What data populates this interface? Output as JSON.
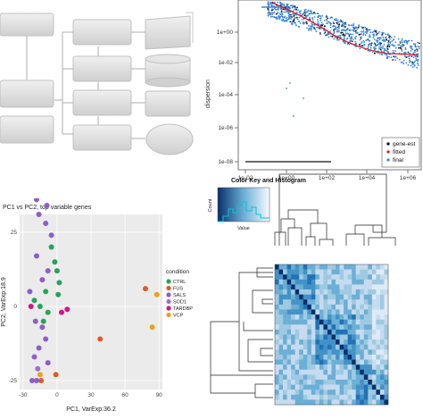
{
  "dispersion": {
    "y_label": "dispersion",
    "y_ticks": [
      "1e+00",
      "1e-02",
      "1e-04",
      "1e-06",
      "1e-08"
    ],
    "x_ticks": [
      "1e-02",
      "1e+00",
      "1e+02",
      "1e+04",
      "1e+06"
    ],
    "legend": [
      {
        "label": "gene-est",
        "color": "#000000"
      },
      {
        "label": "fitted",
        "color": "#e41a1c"
      },
      {
        "label": "final",
        "color": "#3a86d8"
      }
    ]
  },
  "pca": {
    "title": "PC1 vs PC2, top variable genes",
    "xlabel": "PC1, VarExp:36.2",
    "ylabel": "PC2, VarExp:18.9",
    "legend_title": "condition",
    "colors": {
      "CTRL": "#27a35a",
      "FUS": "#e05a22",
      "SALS": "#8d5ec9",
      "SOD1": "#9c6fd0",
      "TARDBP": "#d6128a",
      "VCP": "#f0a01b"
    }
  },
  "chart_data": [
    {
      "type": "scatter",
      "title": "PC1 vs PC2, top variable genes",
      "xlabel": "PC1, VarExp:36.2",
      "ylabel": "PC2, VarExp:18.9",
      "xlim": [
        -33,
        93
      ],
      "ylim": [
        -28,
        31
      ],
      "xticks": [
        "-30",
        "0",
        "30",
        "60",
        "90"
      ],
      "yticks": [
        "25",
        "0",
        "-25"
      ],
      "legend_position": "right",
      "series": [
        {
          "name": "CTRL",
          "points": [
            [
              -5,
              20
            ],
            [
              -2,
              15
            ],
            [
              0,
              12
            ],
            [
              2,
              8
            ],
            [
              -20,
              2
            ],
            [
              -15,
              0
            ],
            [
              -10,
              5
            ],
            [
              1,
              4
            ],
            [
              -8,
              -2
            ],
            [
              -12,
              -5
            ]
          ]
        },
        {
          "name": "FUS",
          "points": [
            [
              78,
              6
            ],
            [
              38,
              -11
            ],
            [
              -1,
              -23
            ],
            [
              -14,
              -25
            ]
          ]
        },
        {
          "name": "SALS",
          "points": [
            [
              -20,
              41
            ],
            [
              -18,
              36
            ],
            [
              -9,
              34
            ],
            [
              -16,
              31
            ],
            [
              -10,
              28
            ],
            [
              -5,
              24
            ],
            [
              -18,
              17
            ],
            [
              -13,
              9
            ],
            [
              -8,
              12
            ],
            [
              -24,
              5
            ],
            [
              -19,
              -5
            ],
            [
              -13,
              -7
            ],
            [
              -10,
              -11
            ],
            [
              -16,
              -14
            ],
            [
              -20,
              -17
            ],
            [
              -8,
              -19
            ],
            [
              -22,
              -25
            ],
            [
              -18,
              -25
            ]
          ]
        },
        {
          "name": "SOD1",
          "points": [
            [
              -17,
              -21
            ]
          ]
        },
        {
          "name": "TARDBP",
          "points": [
            [
              -23,
              0
            ],
            [
              4,
              -2
            ],
            [
              9,
              -1
            ]
          ]
        },
        {
          "name": "VCP",
          "points": [
            [
              88,
              4
            ],
            [
              84,
              -7
            ],
            [
              -15,
              -23
            ]
          ]
        }
      ]
    },
    {
      "type": "heatmap",
      "key_title": "Color Key and Histogram",
      "key_ylabel": "Count",
      "key_xlabel": "Value"
    }
  ]
}
